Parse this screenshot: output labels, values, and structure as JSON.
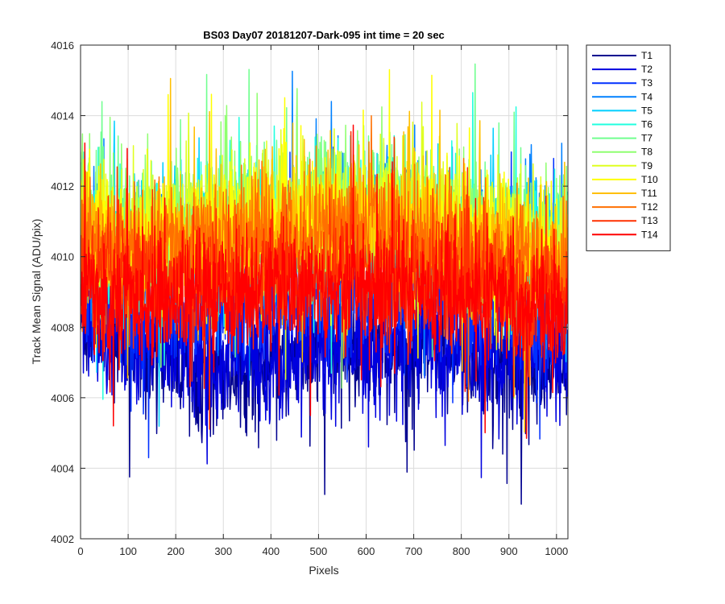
{
  "chart_data": {
    "type": "line",
    "title": "BS03 Day07 20181207-Dark-095 int time = 20 sec",
    "xlabel": "Pixels",
    "ylabel": "Track Mean Signal (ADU/pix)",
    "xlim": [
      0,
      1024
    ],
    "ylim": [
      4002,
      4016
    ],
    "xticks": [
      0,
      100,
      200,
      300,
      400,
      500,
      600,
      700,
      800,
      900,
      1000
    ],
    "yticks": [
      4002,
      4004,
      4006,
      4008,
      4010,
      4012,
      4014,
      4016
    ],
    "grid": true,
    "legend_position": "outside-top-right",
    "n_points": 1024,
    "series": [
      {
        "name": "T1",
        "color": "#00008f",
        "mean_profile": [
          [
            0,
            4008.2
          ],
          [
            100,
            4007.6
          ],
          [
            250,
            4007.0
          ],
          [
            370,
            4006.8
          ],
          [
            520,
            4007.4
          ],
          [
            700,
            4007.3
          ],
          [
            850,
            4007.0
          ],
          [
            1024,
            4006.8
          ]
        ],
        "noise_sd": 0.85
      },
      {
        "name": "T2",
        "color": "#0000df",
        "mean_profile": [
          [
            0,
            4008.3
          ],
          [
            100,
            4007.8
          ],
          [
            250,
            4007.2
          ],
          [
            370,
            4007.0
          ],
          [
            520,
            4007.6
          ],
          [
            700,
            4007.5
          ],
          [
            850,
            4007.2
          ],
          [
            1024,
            4007.0
          ]
        ],
        "noise_sd": 0.85
      },
      {
        "name": "T3",
        "color": "#0030ff",
        "mean_profile": [
          [
            0,
            4009.0
          ],
          [
            100,
            4008.6
          ],
          [
            250,
            4008.6
          ],
          [
            400,
            4008.8
          ],
          [
            520,
            4009.2
          ],
          [
            700,
            4009.0
          ],
          [
            850,
            4008.8
          ],
          [
            1024,
            4008.4
          ]
        ],
        "noise_sd": 0.9
      },
      {
        "name": "T4",
        "color": "#0080ff",
        "mean_profile": [
          [
            0,
            4010.4
          ],
          [
            100,
            4010.0
          ],
          [
            250,
            4010.2
          ],
          [
            400,
            4010.4
          ],
          [
            520,
            4010.8
          ],
          [
            700,
            4010.6
          ],
          [
            850,
            4010.2
          ],
          [
            1024,
            4009.6
          ]
        ],
        "noise_sd": 0.95
      },
      {
        "name": "T5",
        "color": "#00cfff",
        "mean_profile": [
          [
            0,
            4010.6
          ],
          [
            100,
            4010.2
          ],
          [
            250,
            4010.4
          ],
          [
            400,
            4010.6
          ],
          [
            520,
            4011.0
          ],
          [
            700,
            4010.8
          ],
          [
            850,
            4010.4
          ],
          [
            1024,
            4009.8
          ]
        ],
        "noise_sd": 0.95
      },
      {
        "name": "T6",
        "color": "#20ffdf",
        "mean_profile": [
          [
            0,
            4010.7
          ],
          [
            100,
            4010.3
          ],
          [
            250,
            4010.5
          ],
          [
            400,
            4010.7
          ],
          [
            520,
            4011.1
          ],
          [
            700,
            4010.9
          ],
          [
            850,
            4010.5
          ],
          [
            1024,
            4009.9
          ]
        ],
        "noise_sd": 0.95
      },
      {
        "name": "T7",
        "color": "#70ff8f",
        "mean_profile": [
          [
            0,
            4010.9
          ],
          [
            100,
            4010.6
          ],
          [
            250,
            4010.8
          ],
          [
            400,
            4011.0
          ],
          [
            520,
            4011.3
          ],
          [
            700,
            4011.1
          ],
          [
            850,
            4010.7
          ],
          [
            1024,
            4010.1
          ]
        ],
        "noise_sd": 0.95
      },
      {
        "name": "T8",
        "color": "#8fff70",
        "mean_profile": [
          [
            0,
            4011.0
          ],
          [
            100,
            4010.7
          ],
          [
            250,
            4010.9
          ],
          [
            400,
            4011.1
          ],
          [
            520,
            4011.4
          ],
          [
            700,
            4011.2
          ],
          [
            850,
            4010.8
          ],
          [
            1024,
            4010.2
          ]
        ],
        "noise_sd": 0.95
      },
      {
        "name": "T9",
        "color": "#dfff20",
        "mean_profile": [
          [
            0,
            4010.8
          ],
          [
            100,
            4010.6
          ],
          [
            250,
            4010.8
          ],
          [
            400,
            4011.0
          ],
          [
            520,
            4011.3
          ],
          [
            700,
            4011.1
          ],
          [
            850,
            4010.6
          ],
          [
            1024,
            4010.0
          ]
        ],
        "noise_sd": 0.95
      },
      {
        "name": "T10",
        "color": "#ffff00",
        "mean_profile": [
          [
            0,
            4010.6
          ],
          [
            100,
            4010.4
          ],
          [
            250,
            4010.6
          ],
          [
            400,
            4010.8
          ],
          [
            520,
            4011.1
          ],
          [
            700,
            4010.9
          ],
          [
            850,
            4010.4
          ],
          [
            1024,
            4009.8
          ]
        ],
        "noise_sd": 0.95
      },
      {
        "name": "T11",
        "color": "#ffbf00",
        "mean_profile": [
          [
            0,
            4010.5
          ],
          [
            100,
            4010.3
          ],
          [
            250,
            4010.5
          ],
          [
            400,
            4010.7
          ],
          [
            520,
            4011.0
          ],
          [
            700,
            4010.8
          ],
          [
            850,
            4010.3
          ],
          [
            1024,
            4009.7
          ]
        ],
        "noise_sd": 0.9
      },
      {
        "name": "T12",
        "color": "#ff7000",
        "mean_profile": [
          [
            0,
            4010.3
          ],
          [
            100,
            4010.1
          ],
          [
            250,
            4010.3
          ],
          [
            400,
            4010.5
          ],
          [
            520,
            4010.8
          ],
          [
            700,
            4010.6
          ],
          [
            850,
            4010.1
          ],
          [
            1024,
            4009.5
          ]
        ],
        "noise_sd": 0.9
      },
      {
        "name": "T13",
        "color": "#ff3000",
        "mean_profile": [
          [
            0,
            4009.4
          ],
          [
            100,
            4009.2
          ],
          [
            250,
            4009.3
          ],
          [
            400,
            4009.4
          ],
          [
            520,
            4009.6
          ],
          [
            700,
            4009.5
          ],
          [
            850,
            4009.2
          ],
          [
            1024,
            4008.8
          ]
        ],
        "noise_sd": 0.85
      },
      {
        "name": "T14",
        "color": "#ff0000",
        "mean_profile": [
          [
            0,
            4009.0
          ],
          [
            100,
            4008.8
          ],
          [
            250,
            4008.9
          ],
          [
            400,
            4009.0
          ],
          [
            520,
            4009.2
          ],
          [
            700,
            4009.1
          ],
          [
            850,
            4008.8
          ],
          [
            1024,
            4008.4
          ]
        ],
        "noise_sd": 0.85
      }
    ]
  }
}
